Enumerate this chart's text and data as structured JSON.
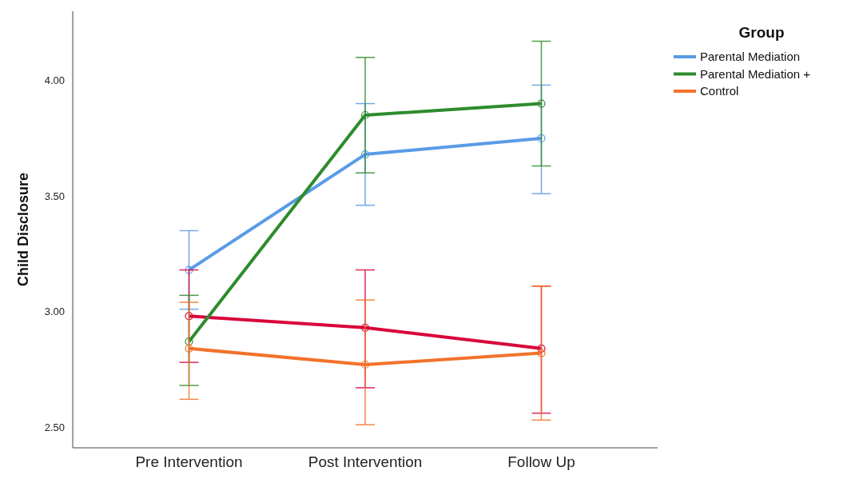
{
  "chart_data": {
    "type": "line",
    "ylabel": "Child Disclosure",
    "legend_title": "Group",
    "categories": [
      "Pre Intervention",
      "Post Intervention",
      "Follow Up"
    ],
    "series": [
      {
        "name": "Parental Mediation",
        "color": "#5a9be6",
        "values": [
          3.18,
          3.68,
          3.75
        ],
        "errors": [
          [
            3.01,
            3.35
          ],
          [
            3.46,
            3.9
          ],
          [
            3.51,
            3.98
          ]
        ]
      },
      {
        "color": "#d9043a",
        "values": [
          2.98,
          2.93,
          2.84
        ],
        "errors": [
          [
            2.78,
            3.18
          ],
          [
            2.67,
            3.18
          ],
          [
            2.56,
            3.11
          ]
        ]
      },
      {
        "name": "Parental Mediation +",
        "color": "#2e8b2e",
        "values": [
          2.87,
          3.85,
          3.9
        ],
        "errors": [
          [
            2.68,
            3.07
          ],
          [
            3.6,
            4.1
          ],
          [
            3.63,
            4.17
          ]
        ]
      },
      {
        "name": "Control",
        "color": "#f2722b",
        "values": [
          2.84,
          2.77,
          2.82
        ],
        "errors": [
          [
            2.62,
            3.04
          ],
          [
            2.51,
            3.05
          ],
          [
            2.53,
            3.11
          ]
        ]
      }
    ],
    "ylim": [
      2.41,
      4.3
    ],
    "yticks": [
      {
        "value": 2.5,
        "label": "2.50"
      },
      {
        "value": 3,
        "label": "3.00"
      },
      {
        "value": 3.5,
        "label": "3.50"
      },
      {
        "value": 4,
        "label": "4.00"
      }
    ],
    "marker": "circle",
    "line_style": "solid",
    "legend": "top right",
    "grid": false
  }
}
